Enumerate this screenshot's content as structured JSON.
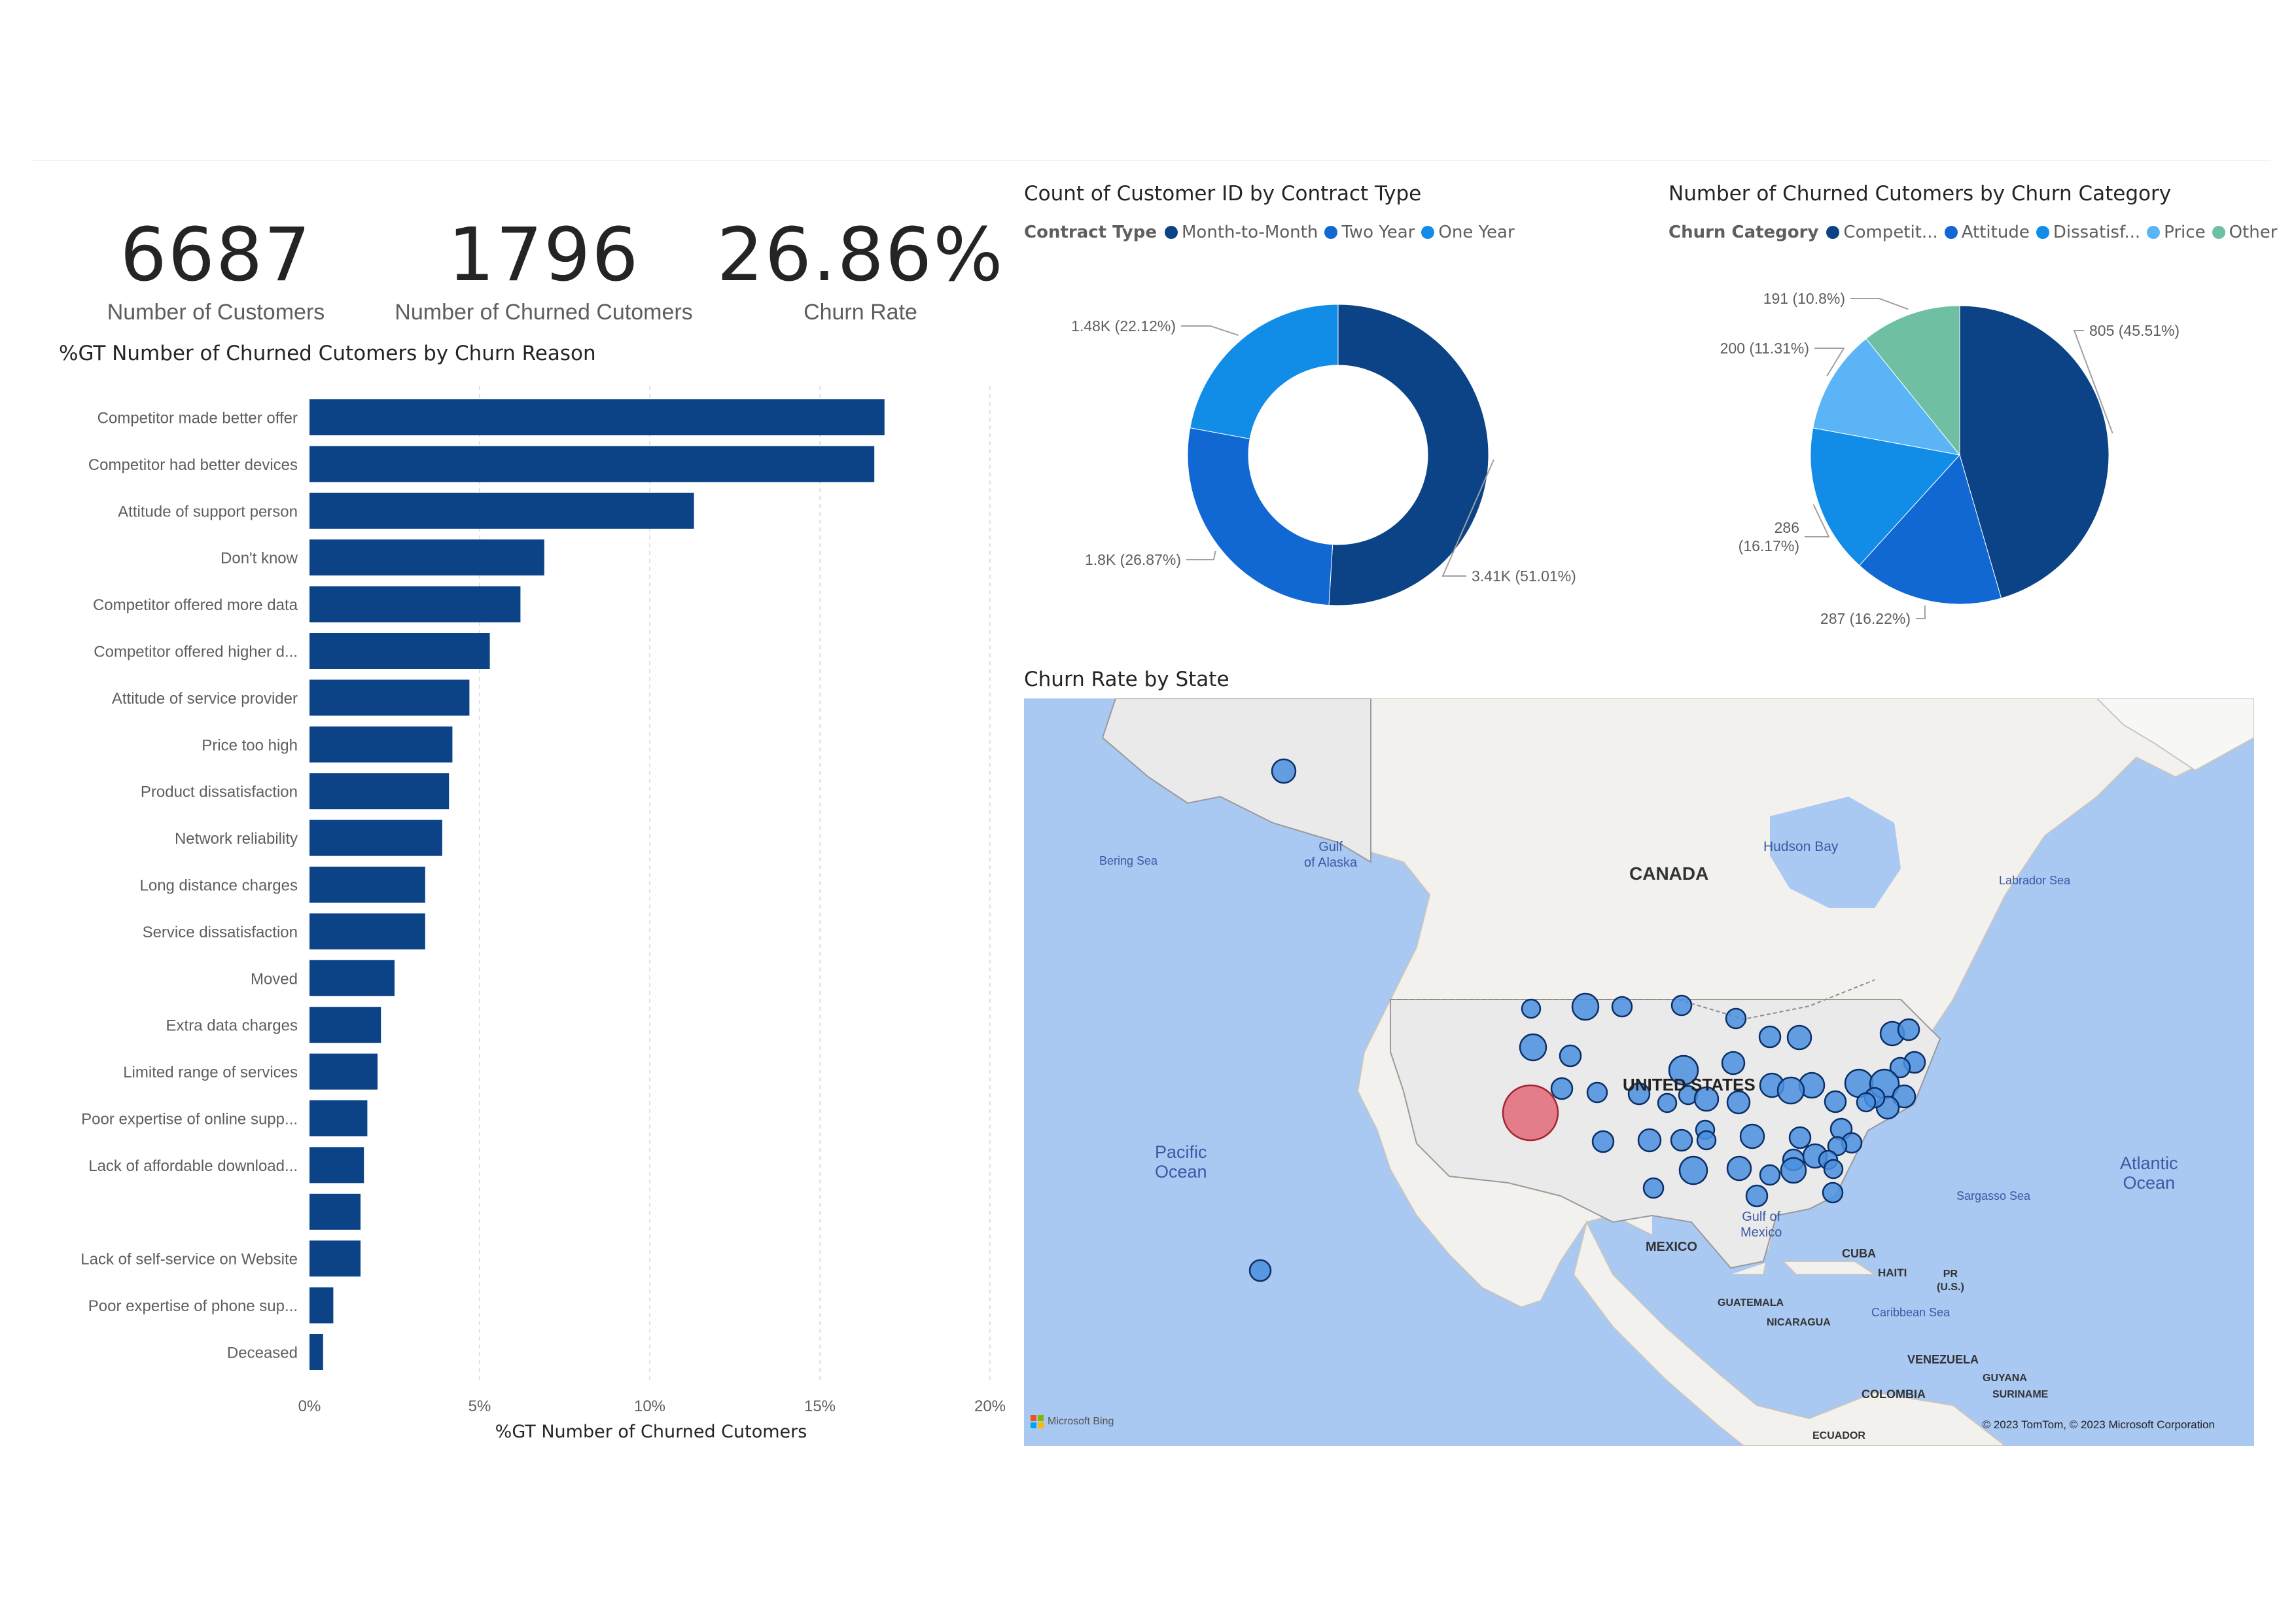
{
  "kpis": [
    {
      "value": "6687",
      "label": "Number of Customers"
    },
    {
      "value": "1796",
      "label": "Number of Churned Cutomers"
    },
    {
      "value": "26.86%",
      "label": "Churn Rate"
    }
  ],
  "bar_chart": {
    "title": "%GT Number of Churned Cutomers by Churn Reason",
    "xlabel": "%GT Number of Churned Cutomers",
    "ticks": [
      "0%",
      "5%",
      "10%",
      "15%",
      "20%"
    ]
  },
  "donut_chart": {
    "title": "Count of Customer ID by Contract Type",
    "legend_title": "Contract Type"
  },
  "pie_chart": {
    "title": "Number of Churned Cutomers by Churn Category",
    "legend_title": "Churn Category"
  },
  "map": {
    "title": "Churn Rate by State",
    "labels": {
      "canada": "CANADA",
      "us": "UNITED STATES",
      "mexico": "MEXICO",
      "pacific": "Pacific\nOcean",
      "atlantic": "Atlantic\nOcean",
      "bering": "Bering Sea",
      "alaska_gulf": "Gulf\nof Alaska",
      "hudson": "Hudson Bay",
      "labrador": "Labrador Sea",
      "sargasso": "Sargasso Sea",
      "mexico_gulf": "Gulf of\nMexico",
      "cuba": "CUBA",
      "haiti": "HAITI",
      "pr": "PR\n(U.S.)",
      "caribbean": "Caribbean Sea",
      "guatemala": "GUATEMALA",
      "nicaragua": "NICARAGUA",
      "venezuela": "VENEZUELA",
      "guyana": "GUYANA",
      "suriname": "SURINAME",
      "colombia": "COLOMBIA",
      "ecuador": "ECUADOR"
    },
    "bing": "Microsoft Bing",
    "copyright": "© 2023 TomTom, © 2023 Microsoft Corporation"
  },
  "colors": {
    "dark_blue": "#0b4386",
    "blue": "#1168d2",
    "bright_blue": "#118de8",
    "light_blue": "#5ab4f5",
    "teal": "#6fc0a3",
    "map_water": "#a9c8f2",
    "bubble": "#4a8fe0",
    "bubble_red": "#e06a78"
  },
  "chart_data": [
    {
      "type": "bar",
      "orientation": "horizontal",
      "title": "%GT Number of Churned Cutomers by Churn Reason",
      "xlabel": "%GT Number of Churned Cutomers",
      "xlim": [
        0,
        20
      ],
      "categories": [
        "Competitor made better offer",
        "Competitor had better devices",
        "Attitude of support person",
        "Don't know",
        "Competitor offered more data",
        "Competitor offered higher d...",
        "Attitude of service provider",
        "Price too high",
        "Product dissatisfaction",
        "Network reliability",
        "Long distance charges",
        "Service dissatisfaction",
        "Moved",
        "Extra data charges",
        "Limited range of services",
        "Poor expertise of online supp...",
        "Lack of affordable download...",
        "",
        "Lack of self-service on Website",
        "Poor expertise of phone sup...",
        "Deceased"
      ],
      "values": [
        16.9,
        16.6,
        11.3,
        6.9,
        6.2,
        5.3,
        4.7,
        4.2,
        4.1,
        3.9,
        3.4,
        3.4,
        2.5,
        2.1,
        2.0,
        1.7,
        1.6,
        1.5,
        1.5,
        0.7,
        0.4
      ]
    },
    {
      "type": "pie",
      "variant": "donut",
      "title": "Count of Customer ID by Contract Type",
      "legend_title": "Contract Type",
      "labels": [
        "Month-to-Month",
        "Two Year",
        "One Year"
      ],
      "values": [
        3410,
        1800,
        1480
      ],
      "percents": [
        51.01,
        26.87,
        22.12
      ],
      "data_labels": [
        "3.41K (51.01%)",
        "1.8K (26.87%)",
        "1.48K (22.12%)"
      ],
      "colors": [
        "#0b4386",
        "#1168d2",
        "#118de8"
      ],
      "legend_position": "top-left"
    },
    {
      "type": "pie",
      "title": "Number of Churned Cutomers by Churn Category",
      "legend_title": "Churn Category",
      "labels": [
        "Competit...",
        "Attitude",
        "Dissatisf...",
        "Price",
        "Other"
      ],
      "values": [
        805,
        287,
        286,
        200,
        191
      ],
      "percents": [
        45.51,
        16.22,
        16.17,
        11.31,
        10.8
      ],
      "data_labels": [
        "805 (45.51%)",
        "287 (16.22%)",
        "286\n(16.17%)",
        "200 (11.31%)",
        "191 (10.8%)"
      ],
      "colors": [
        "#0b4386",
        "#1168d2",
        "#118de8",
        "#5ab4f5",
        "#6fc0a3"
      ],
      "legend_position": "top-left"
    }
  ]
}
